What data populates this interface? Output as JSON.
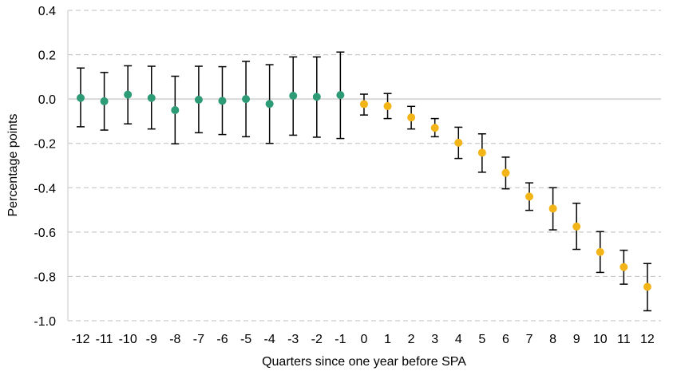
{
  "chart_data": {
    "type": "scatter",
    "title": "",
    "xlabel": "Quarters since one year before SPA",
    "ylabel": "Percentage points",
    "ylim": [
      -1.0,
      0.4
    ],
    "yticks": [
      -1.0,
      -0.8,
      -0.6,
      -0.4,
      -0.2,
      0.0,
      0.2,
      0.4
    ],
    "ytick_labels": [
      "-1.0",
      "-0.8",
      "-0.6",
      "-0.4",
      "-0.2",
      "0.0",
      "0.2",
      "0.4"
    ],
    "grid": "horizontal-dashed",
    "legend": "none",
    "colors": {
      "pre": "#2e9b77",
      "post": "#f2b417",
      "error_bar": "#000000"
    },
    "x": [
      -12,
      -11,
      -10,
      -9,
      -8,
      -7,
      -6,
      -5,
      -4,
      -3,
      -2,
      -1,
      0,
      1,
      2,
      3,
      4,
      5,
      6,
      7,
      8,
      9,
      10,
      11,
      12
    ],
    "x_labels": [
      "-12",
      "-11",
      "-10",
      "-9",
      "-8",
      "-7",
      "-6",
      "-5",
      "-4",
      "-3",
      "-2",
      "-1",
      "0",
      "1",
      "2",
      "3",
      "4",
      "5",
      "6",
      "7",
      "8",
      "9",
      "10",
      "11",
      "12"
    ],
    "series": [
      {
        "group": "pre",
        "x": [
          -12,
          -11,
          -10,
          -9,
          -8,
          -7,
          -6,
          -5,
          -4,
          -3,
          -2,
          -1
        ],
        "values": [
          0.005,
          -0.01,
          0.02,
          0.005,
          -0.05,
          -0.003,
          -0.008,
          0.0,
          -0.022,
          0.015,
          0.01,
          0.018
        ],
        "upper": [
          0.14,
          0.12,
          0.15,
          0.148,
          0.103,
          0.148,
          0.146,
          0.17,
          0.155,
          0.19,
          0.19,
          0.212
        ],
        "lower": [
          -0.125,
          -0.14,
          -0.112,
          -0.135,
          -0.202,
          -0.152,
          -0.16,
          -0.17,
          -0.2,
          -0.163,
          -0.172,
          -0.178
        ]
      },
      {
        "group": "post",
        "x": [
          0,
          1,
          2,
          3,
          4,
          5,
          6,
          7,
          8,
          9,
          10,
          11,
          12
        ],
        "values": [
          -0.023,
          -0.032,
          -0.083,
          -0.13,
          -0.197,
          -0.242,
          -0.333,
          -0.44,
          -0.494,
          -0.575,
          -0.69,
          -0.758,
          -0.847
        ],
        "upper": [
          0.022,
          0.025,
          -0.033,
          -0.088,
          -0.127,
          -0.157,
          -0.262,
          -0.378,
          -0.4,
          -0.47,
          -0.598,
          -0.682,
          -0.742
        ],
        "lower": [
          -0.072,
          -0.088,
          -0.135,
          -0.17,
          -0.268,
          -0.33,
          -0.405,
          -0.502,
          -0.59,
          -0.678,
          -0.782,
          -0.835,
          -0.955
        ]
      }
    ]
  }
}
